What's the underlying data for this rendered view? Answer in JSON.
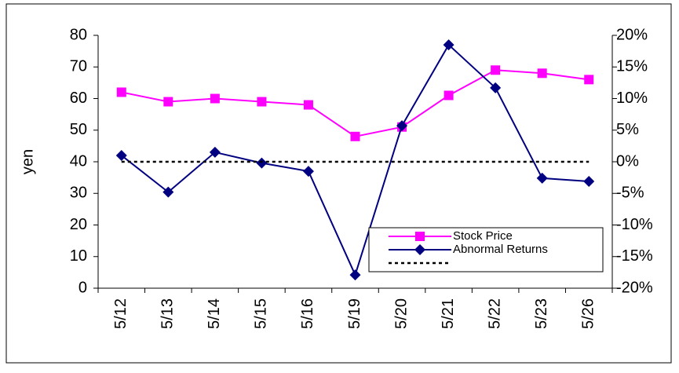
{
  "chart_data": {
    "type": "line",
    "y_label": "yen",
    "categories": [
      "5/12",
      "5/13",
      "5/14",
      "5/15",
      "5/16",
      "5/19",
      "5/20",
      "5/21",
      "5/22",
      "5/23",
      "5/26"
    ],
    "series": [
      {
        "name": "Stock Price",
        "color": "#ff00ff",
        "marker": "square",
        "values": [
          62,
          59,
          60,
          59,
          58,
          48,
          51,
          61,
          69,
          68,
          66
        ]
      },
      {
        "name": "Abnormal Returns",
        "color": "#000080",
        "marker": "diamond",
        "axis": "y2",
        "values": [
          1.0,
          -4.8,
          1.5,
          -0.2,
          -1.5,
          -17.9,
          5.7,
          18.5,
          11.7,
          -2.6,
          -3.1
        ]
      },
      {
        "color": "#000000",
        "marker": "none",
        "dashed": true,
        "axis": "y2",
        "values": [
          0,
          0,
          0,
          0,
          0,
          0,
          0,
          0,
          0,
          0,
          0
        ]
      }
    ],
    "ylim": [
      0,
      80
    ],
    "yticks": [
      0,
      10,
      20,
      30,
      40,
      50,
      60,
      70,
      80
    ],
    "y2lim": [
      -20,
      20
    ],
    "y2ticks": [
      {
        "value": -20,
        "label": "-20%"
      },
      {
        "value": -15,
        "label": "-15%"
      },
      {
        "value": -10,
        "label": "-10%"
      },
      {
        "value": -5,
        "label": "-5%"
      },
      {
        "value": 0,
        "label": "0%"
      },
      {
        "value": 5,
        "label": "5%"
      },
      {
        "value": 10,
        "label": "10%"
      },
      {
        "value": 15,
        "label": "15%"
      },
      {
        "value": 20,
        "label": "20%"
      }
    ],
    "grid": false,
    "legend": "lower right"
  }
}
